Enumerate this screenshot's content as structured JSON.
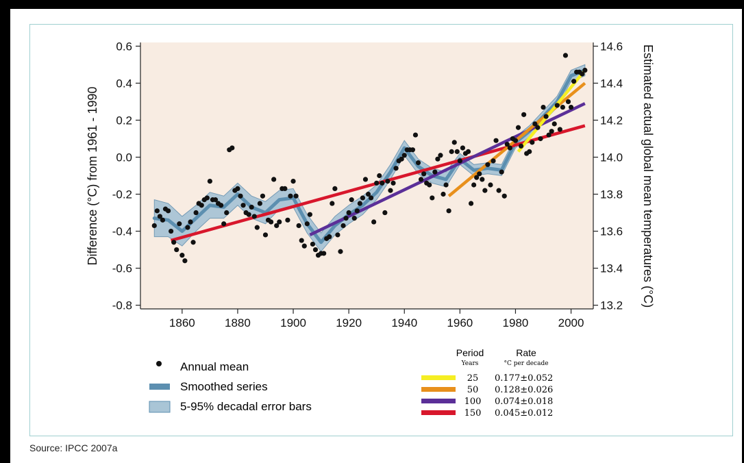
{
  "source": "Source: IPCC 2007a",
  "colors": {
    "plot_background": "#f8ece2",
    "dots": "#111111",
    "smoothed": "#5c8fb0",
    "error_band": "#a9c5d6",
    "yellow": "#f5ee23",
    "orange": "#e8901c",
    "purple": "#5b2f98",
    "red": "#d8172c"
  },
  "legend": {
    "annual_mean": "Annual mean",
    "smoothed_series": "Smoothed series",
    "error_bars": "5-95% decadal error bars"
  },
  "rate_table": {
    "period_header": "Period",
    "period_sub": "Years",
    "rate_header": "Rate",
    "rate_sub": "°C per decade",
    "rows": [
      {
        "period": "25",
        "rate": "0.177±0.052",
        "color": "#f5ee23"
      },
      {
        "period": "50",
        "rate": "0.128±0.026",
        "color": "#e8901c"
      },
      {
        "period": "100",
        "rate": "0.074±0.018",
        "color": "#5b2f98"
      },
      {
        "period": "150",
        "rate": "0.045±0.012",
        "color": "#d8172c"
      }
    ]
  },
  "chart_data": {
    "type": "scatter",
    "ylabel": "Difference (°C) from 1961 - 1990",
    "y2label": "Estimated actual global mean temperatures (°C)",
    "xlim": [
      1845,
      2008
    ],
    "ylim": [
      -0.82,
      0.62
    ],
    "y2lim": [
      13.18,
      14.62
    ],
    "x_ticks": [
      1860,
      1880,
      1900,
      1920,
      1940,
      1960,
      1980,
      2000
    ],
    "y_ticks": [
      "0.6",
      "0.4",
      "0.2",
      "0.0",
      "-0.2",
      "-0.4",
      "-0.6",
      "-0.8"
    ],
    "y_tick_values": [
      0.6,
      0.4,
      0.2,
      0.0,
      -0.2,
      -0.4,
      -0.6,
      -0.8
    ],
    "y2_ticks": [
      "14.6",
      "14.4",
      "14.2",
      "14.0",
      "13.8",
      "13.6",
      "13.4",
      "13.2"
    ],
    "y2_tick_values": [
      14.6,
      14.4,
      14.2,
      14.0,
      13.8,
      13.6,
      13.4,
      13.2
    ],
    "annual_mean": {
      "years": [
        1850,
        1851,
        1852,
        1853,
        1854,
        1855,
        1856,
        1857,
        1858,
        1859,
        1860,
        1861,
        1862,
        1863,
        1864,
        1865,
        1866,
        1867,
        1868,
        1869,
        1870,
        1871,
        1872,
        1873,
        1874,
        1875,
        1876,
        1877,
        1878,
        1879,
        1880,
        1881,
        1882,
        1883,
        1884,
        1885,
        1886,
        1887,
        1888,
        1889,
        1890,
        1891,
        1892,
        1893,
        1894,
        1895,
        1896,
        1897,
        1898,
        1899,
        1900,
        1901,
        1902,
        1903,
        1904,
        1905,
        1906,
        1907,
        1908,
        1909,
        1910,
        1911,
        1912,
        1913,
        1914,
        1915,
        1916,
        1917,
        1918,
        1919,
        1920,
        1921,
        1922,
        1923,
        1924,
        1925,
        1926,
        1927,
        1928,
        1929,
        1930,
        1931,
        1932,
        1933,
        1934,
        1935,
        1936,
        1937,
        1938,
        1939,
        1940,
        1941,
        1942,
        1943,
        1944,
        1945,
        1946,
        1947,
        1948,
        1949,
        1950,
        1951,
        1952,
        1953,
        1954,
        1955,
        1956,
        1957,
        1958,
        1959,
        1960,
        1961,
        1962,
        1963,
        1964,
        1965,
        1966,
        1967,
        1968,
        1969,
        1970,
        1971,
        1972,
        1973,
        1974,
        1975,
        1976,
        1977,
        1978,
        1979,
        1980,
        1981,
        1982,
        1983,
        1984,
        1985,
        1986,
        1987,
        1988,
        1989,
        1990,
        1991,
        1992,
        1993,
        1994,
        1995,
        1996,
        1997,
        1998,
        1999,
        2000,
        2001,
        2002,
        2003,
        2004,
        2005
      ],
      "values": [
        -0.37,
        -0.29,
        -0.32,
        -0.34,
        -0.28,
        -0.29,
        -0.4,
        -0.46,
        -0.5,
        -0.36,
        -0.53,
        -0.56,
        -0.38,
        -0.35,
        -0.46,
        -0.3,
        -0.25,
        -0.26,
        -0.23,
        -0.22,
        -0.13,
        -0.23,
        -0.23,
        -0.25,
        -0.26,
        -0.36,
        -0.3,
        0.04,
        0.05,
        -0.18,
        -0.17,
        -0.21,
        -0.26,
        -0.3,
        -0.31,
        -0.27,
        -0.32,
        -0.38,
        -0.25,
        -0.21,
        -0.42,
        -0.34,
        -0.35,
        -0.12,
        -0.37,
        -0.35,
        -0.17,
        -0.17,
        -0.34,
        -0.21,
        -0.13,
        -0.21,
        -0.37,
        -0.45,
        -0.48,
        -0.36,
        -0.31,
        -0.47,
        -0.5,
        -0.53,
        -0.52,
        -0.52,
        -0.44,
        -0.43,
        -0.25,
        -0.17,
        -0.42,
        -0.51,
        -0.37,
        -0.33,
        -0.3,
        -0.23,
        -0.33,
        -0.29,
        -0.25,
        -0.22,
        -0.12,
        -0.2,
        -0.22,
        -0.35,
        -0.14,
        -0.1,
        -0.14,
        -0.3,
        -0.13,
        -0.18,
        -0.14,
        -0.06,
        -0.02,
        -0.01,
        0.01,
        0.04,
        0.04,
        0.04,
        0.12,
        -0.03,
        -0.12,
        -0.09,
        -0.14,
        -0.15,
        -0.22,
        -0.08,
        -0.01,
        0.01,
        -0.2,
        -0.15,
        -0.29,
        0.03,
        0.08,
        0.03,
        -0.02,
        0.05,
        0.02,
        0.03,
        -0.25,
        -0.15,
        -0.11,
        -0.09,
        -0.12,
        -0.18,
        -0.04,
        -0.15,
        -0.02,
        0.09,
        -0.18,
        -0.08,
        -0.21,
        0.07,
        0.05,
        0.1,
        0.09,
        0.16,
        0.06,
        0.23,
        0.02,
        0.03,
        0.08,
        0.18,
        0.16,
        0.1,
        0.27,
        0.22,
        0.12,
        0.14,
        0.18,
        0.28,
        0.15,
        0.27,
        0.55,
        0.3,
        0.27,
        0.41,
        0.46,
        0.46,
        0.45,
        0.47
      ]
    },
    "smoothed_series": {
      "years": [
        1850,
        1855,
        1860,
        1865,
        1870,
        1875,
        1880,
        1885,
        1890,
        1895,
        1900,
        1905,
        1910,
        1915,
        1920,
        1925,
        1930,
        1935,
        1940,
        1945,
        1950,
        1955,
        1960,
        1965,
        1970,
        1975,
        1980,
        1985,
        1990,
        1995,
        2000,
        2005
      ],
      "values": [
        -0.33,
        -0.34,
        -0.4,
        -0.33,
        -0.26,
        -0.27,
        -0.2,
        -0.27,
        -0.3,
        -0.23,
        -0.22,
        -0.36,
        -0.46,
        -0.37,
        -0.31,
        -0.26,
        -0.19,
        -0.08,
        0.05,
        -0.05,
        -0.1,
        -0.12,
        -0.01,
        -0.07,
        -0.06,
        -0.07,
        0.08,
        0.14,
        0.22,
        0.3,
        0.44,
        0.47
      ],
      "band_halfwidth": [
        0.1,
        0.09,
        0.08,
        0.07,
        0.07,
        0.06,
        0.06,
        0.06,
        0.06,
        0.05,
        0.05,
        0.05,
        0.05,
        0.05,
        0.05,
        0.05,
        0.04,
        0.04,
        0.04,
        0.04,
        0.04,
        0.04,
        0.03,
        0.03,
        0.03,
        0.03,
        0.03,
        0.03,
        0.03,
        0.03,
        0.03,
        0.03
      ]
    },
    "trend_lines": [
      {
        "period": 150,
        "color": "#d8172c",
        "x": [
          1856,
          2005
        ],
        "y": [
          -0.45,
          0.17
        ]
      },
      {
        "period": 100,
        "color": "#5b2f98",
        "x": [
          1906,
          2005
        ],
        "y": [
          -0.42,
          0.29
        ]
      },
      {
        "period": 50,
        "color": "#e8901c",
        "x": [
          1956,
          2005
        ],
        "y": [
          -0.21,
          0.4
        ]
      },
      {
        "period": 25,
        "color": "#f5ee23",
        "x": [
          1981,
          2005
        ],
        "y": [
          0.03,
          0.47
        ]
      }
    ]
  }
}
